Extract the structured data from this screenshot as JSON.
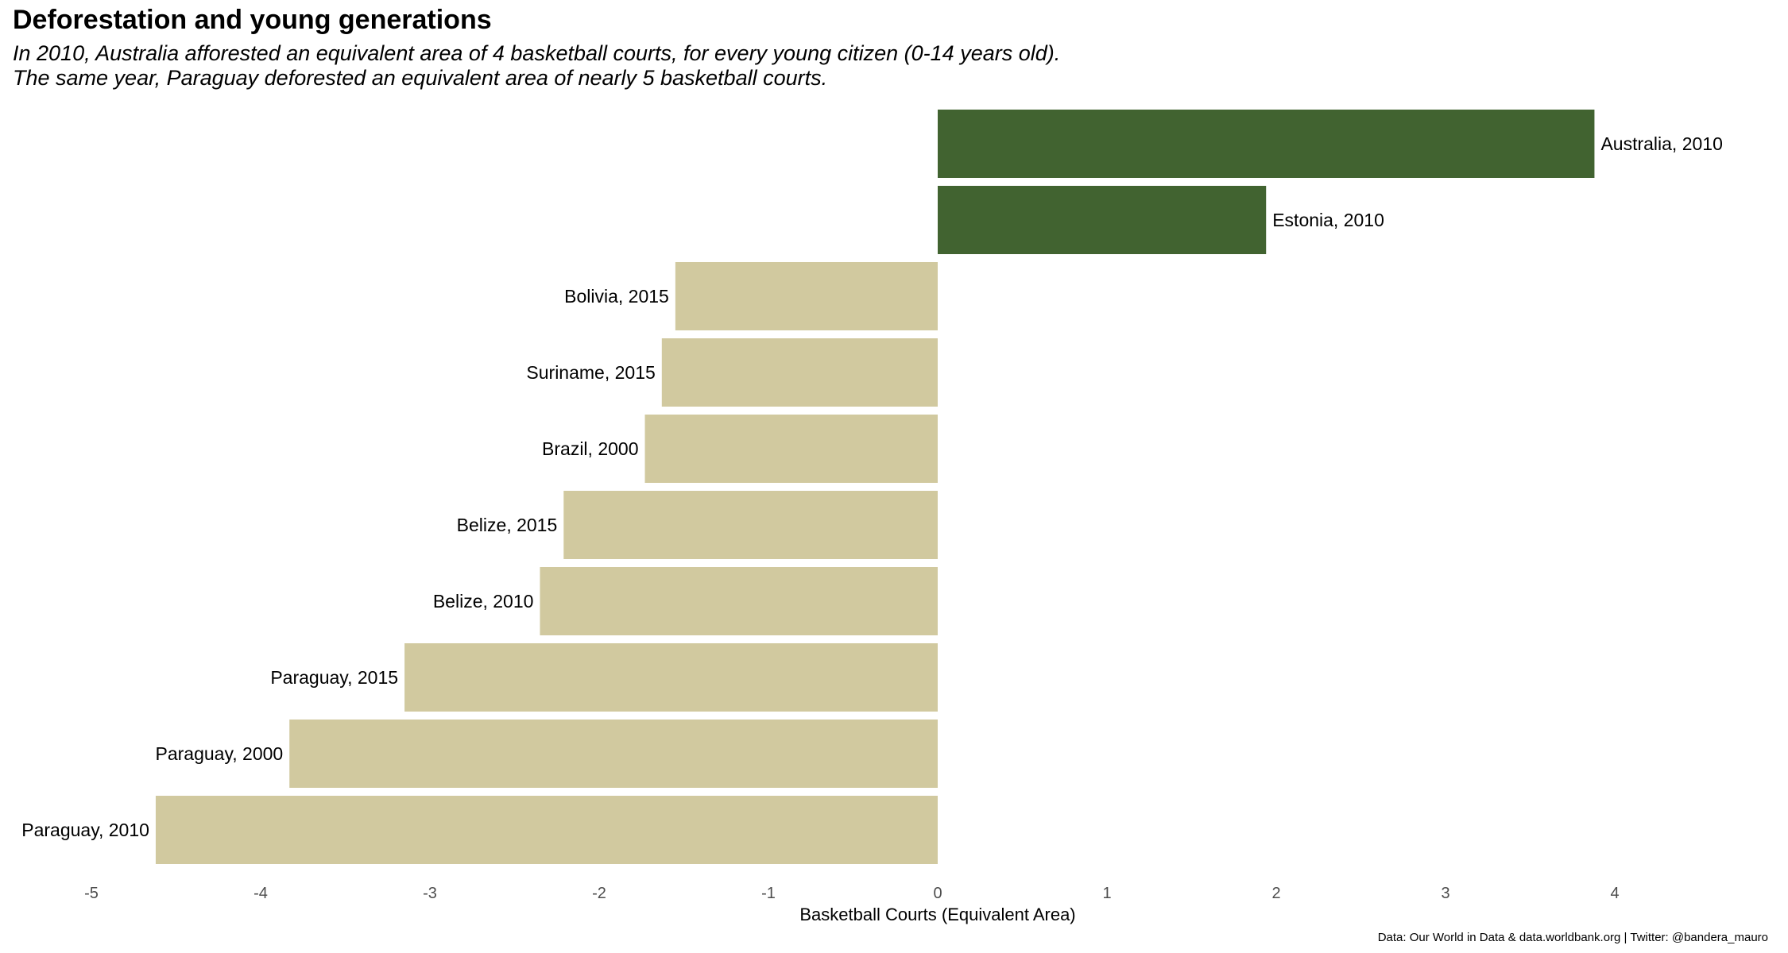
{
  "title": "Deforestation and young generations",
  "subtitle": {
    "line1": "In 2010, Australia afforested an equivalent area of 4 basketball courts, for every young citizen (0-14 years old).",
    "line2": "The same year, Paraguay deforested an equivalent area of nearly 5 basketball courts."
  },
  "caption": "Data: Our World in Data & data.worldbank.org | Twitter: @bandera_mauro",
  "colors": {
    "afforestation": "#416330",
    "deforestation": "#d1c99f"
  },
  "chart_data": {
    "type": "bar",
    "orientation": "horizontal",
    "title": "Deforestation and young generations",
    "xlabel": "Basketball Courts (Equivalent Area)",
    "ylabel": "",
    "xlim": [
      -5,
      4.75
    ],
    "xticks": [
      -5,
      -4,
      -3,
      -2,
      -1,
      0,
      1,
      2,
      3,
      4
    ],
    "grid": false,
    "legend": "none",
    "categories": [
      "Australia, 2010",
      "Estonia, 2010",
      "Bolivia, 2015",
      "Suriname, 2015",
      "Brazil, 2000",
      "Belize, 2015",
      "Belize, 2010",
      "Paraguay, 2015",
      "Paraguay, 2000",
      "Paraguay, 2010"
    ],
    "values": [
      3.88,
      1.94,
      -1.55,
      -1.63,
      -1.73,
      -2.21,
      -2.35,
      -3.15,
      -3.83,
      -4.62
    ]
  }
}
